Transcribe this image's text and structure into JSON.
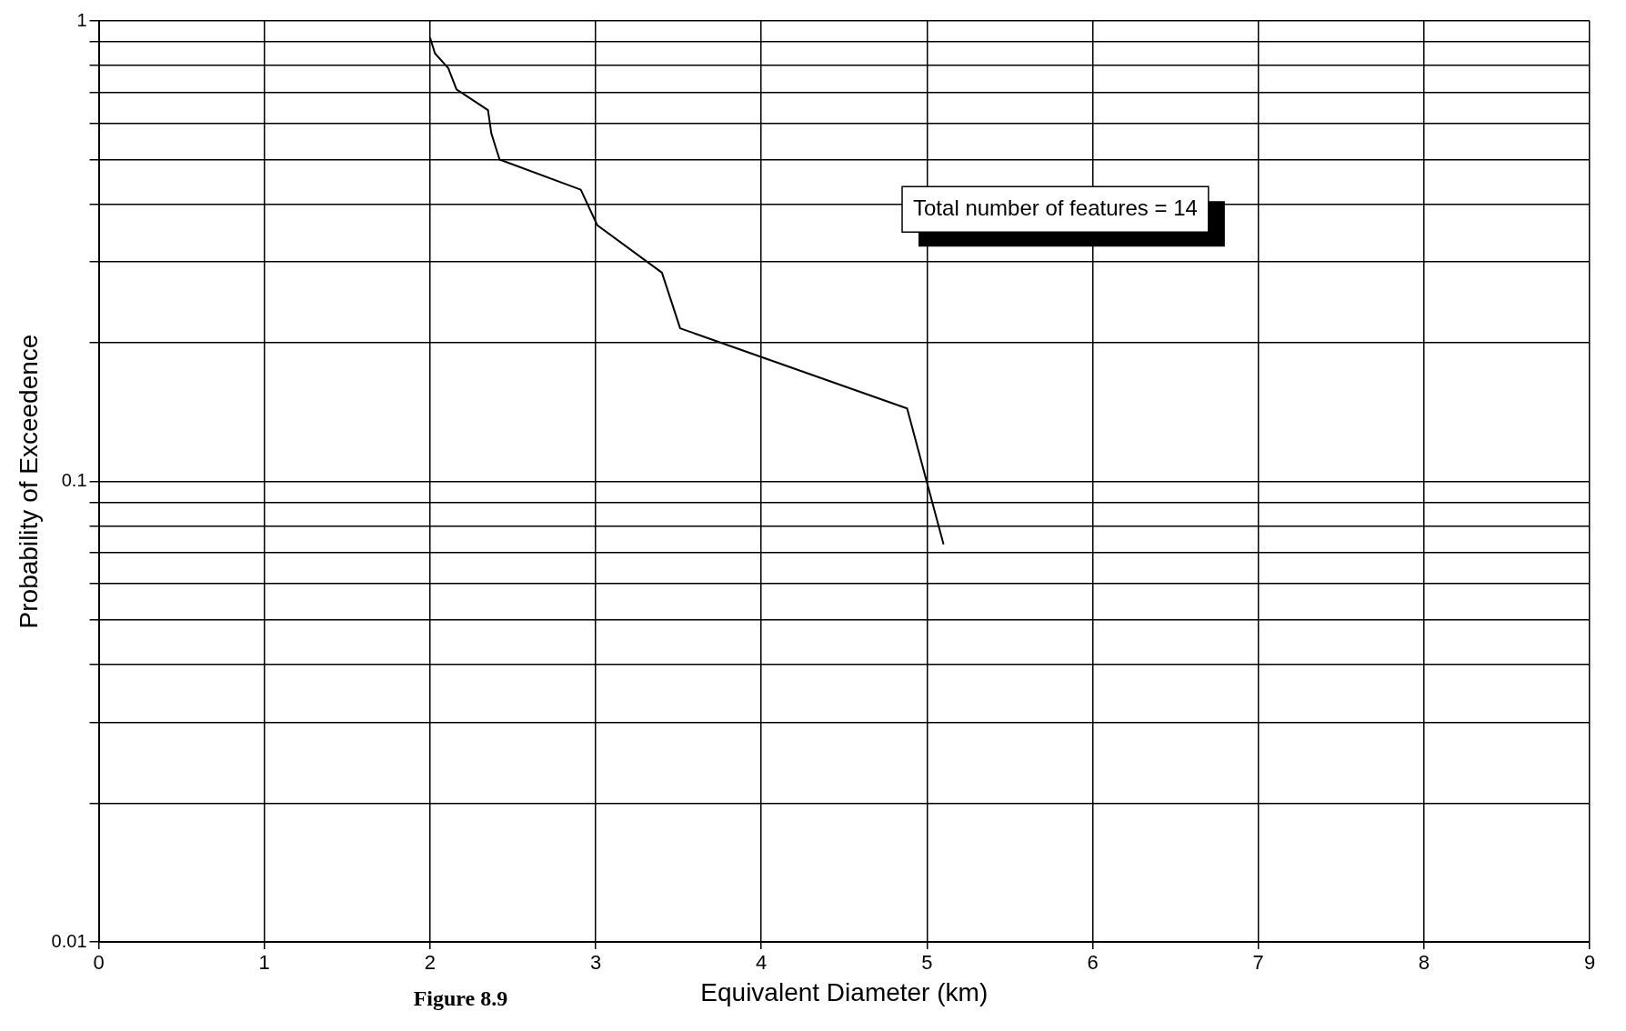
{
  "chart_data": {
    "type": "line",
    "xlabel": "Equivalent Diameter (km)",
    "ylabel": "Probability of Exceedence",
    "annotations": [
      "Total number of features = 14",
      "Figure 8.9"
    ],
    "x": [
      2.0,
      2.03,
      2.11,
      2.16,
      2.24,
      2.35,
      2.37,
      2.42,
      2.91,
      3.01,
      3.4,
      3.51,
      4.88,
      5.1
    ],
    "series": [
      {
        "color": "#000000",
        "values": [
          0.92,
          0.85,
          0.79,
          0.71,
          0.68,
          0.64,
          0.57,
          0.5,
          0.43,
          0.36,
          0.284,
          0.215,
          0.144,
          0.073
        ]
      }
    ],
    "xlim": [
      0,
      9
    ],
    "xticks": [
      0,
      1,
      2,
      3,
      4,
      5,
      6,
      7,
      8,
      9
    ],
    "ylim": [
      0.01,
      1
    ],
    "yticks": [
      {
        "value": 0.01,
        "label": "0.01"
      },
      {
        "value": 0.02,
        "label": null
      },
      {
        "value": 0.03,
        "label": null
      },
      {
        "value": 0.04,
        "label": null
      },
      {
        "value": 0.05,
        "label": null
      },
      {
        "value": 0.06,
        "label": null
      },
      {
        "value": 0.07,
        "label": null
      },
      {
        "value": 0.08,
        "label": null
      },
      {
        "value": 0.09,
        "label": null
      },
      {
        "value": 0.1,
        "label": "0.1"
      },
      {
        "value": 0.2,
        "label": null
      },
      {
        "value": 0.3,
        "label": null
      },
      {
        "value": 0.4,
        "label": null
      },
      {
        "value": 0.5,
        "label": null
      },
      {
        "value": 0.6,
        "label": null
      },
      {
        "value": 0.7,
        "label": null
      },
      {
        "value": 0.8,
        "label": null
      },
      {
        "value": 0.9,
        "label": null
      },
      {
        "value": 1,
        "label": "1"
      }
    ],
    "log": "y",
    "grid": true,
    "legend": false,
    "marker": "none",
    "line_style": "solid"
  }
}
